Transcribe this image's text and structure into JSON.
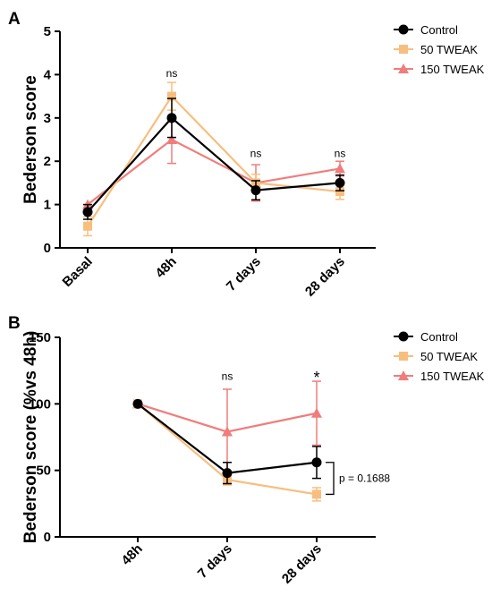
{
  "colors": {
    "Control": "#000000",
    "50 TWEAK": "#F8BE7E",
    "150 TWEAK": "#F07D7B"
  },
  "chart_data": [
    {
      "panel": "A",
      "type": "line",
      "ylabel": "Bederson score",
      "xlabel": "",
      "categories": [
        "Basal",
        "48h",
        "7 days",
        "28 days"
      ],
      "ylim": [
        0,
        5
      ],
      "yticks": [
        0,
        1,
        2,
        3,
        4,
        5
      ],
      "legend_position": "top-right",
      "series": [
        {
          "name": "Control",
          "marker": "circle",
          "values": [
            0.83,
            3.0,
            1.33,
            1.5
          ],
          "errors": [
            0.17,
            0.45,
            0.22,
            0.18
          ]
        },
        {
          "name": "50 TWEAK",
          "marker": "square",
          "values": [
            0.5,
            3.5,
            1.5,
            1.3
          ],
          "errors": [
            0.22,
            0.32,
            0.2,
            0.18
          ]
        },
        {
          "name": "150 TWEAK",
          "marker": "triangle",
          "values": [
            1.0,
            2.5,
            1.5,
            1.83
          ],
          "errors": [
            0.0,
            0.55,
            0.42,
            0.17
          ]
        }
      ],
      "annotations": [
        {
          "category": "48h",
          "value": 3.95,
          "text": "ns"
        },
        {
          "category": "7 days",
          "value": 2.1,
          "text": "ns"
        },
        {
          "category": "28 days",
          "value": 2.1,
          "text": "ns"
        }
      ]
    },
    {
      "panel": "B",
      "type": "line",
      "ylabel": "Bederson score (%vs 48h)",
      "xlabel": "",
      "categories": [
        "48h",
        "7 days",
        "28 days"
      ],
      "ylim": [
        0,
        150
      ],
      "yticks": [
        0,
        50,
        100,
        150
      ],
      "legend_position": "top-right",
      "series": [
        {
          "name": "Control",
          "marker": "circle",
          "values": [
            100,
            48,
            56
          ],
          "errors": [
            0,
            8,
            12
          ]
        },
        {
          "name": "50 TWEAK",
          "marker": "square",
          "values": [
            100,
            43,
            32
          ],
          "errors": [
            0,
            4,
            5
          ]
        },
        {
          "name": "150 TWEAK",
          "marker": "triangle",
          "values": [
            100,
            79,
            93
          ],
          "errors": [
            0,
            32,
            24
          ]
        }
      ],
      "annotations": [
        {
          "category": "7 days",
          "value": 118,
          "text": "ns"
        },
        {
          "category": "28 days",
          "value": 121,
          "text": "*"
        }
      ],
      "bracket": {
        "from": 56,
        "to": 32,
        "text": "p = 0.1688"
      }
    }
  ]
}
